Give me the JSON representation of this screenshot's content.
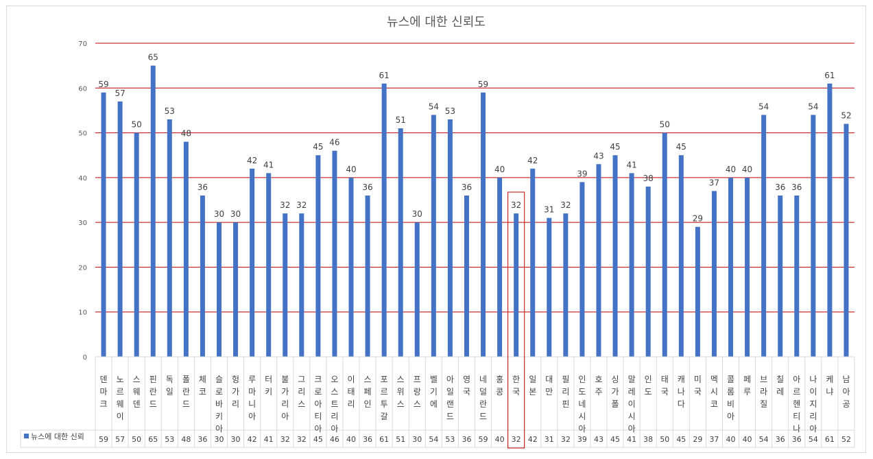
{
  "chart_data": {
    "type": "bar",
    "title": "뉴스에 대한 신뢰도",
    "xlabel": "",
    "ylabel": "",
    "ylim": [
      0,
      70
    ],
    "yticks": [
      0,
      10,
      20,
      30,
      40,
      50,
      60,
      70
    ],
    "grid": true,
    "legend": "bottom-left (data table)",
    "highlighted_category": "한국",
    "categories": [
      "덴마크",
      "노르웨이",
      "스웨덴",
      "핀란드",
      "독일",
      "폴란드",
      "체코",
      "슬로바키아",
      "헝가리",
      "루마니아",
      "터키",
      "불가리아",
      "그리스",
      "크로아티아",
      "오스트리아",
      "이태리",
      "스페인",
      "포르투갈",
      "스위스",
      "프랑스",
      "벨기에",
      "아일랜드",
      "영국",
      "네덜란드",
      "홍콩",
      "한국",
      "일본",
      "대만",
      "필리핀",
      "인도네시아",
      "호주",
      "싱가폴",
      "말레이시아",
      "인도",
      "태국",
      "캐나다",
      "미국",
      "멕시코",
      "콜롬비아",
      "페루",
      "브라질",
      "칠레",
      "아르헨티나",
      "나이지리아",
      "케냐",
      "남아공"
    ],
    "series": [
      {
        "name": "뉴스에 대한 신뢰",
        "color": "#4472c4",
        "values": [
          59,
          57,
          50,
          65,
          53,
          48,
          36,
          30,
          30,
          42,
          41,
          32,
          32,
          45,
          46,
          40,
          36,
          61,
          51,
          30,
          54,
          53,
          36,
          59,
          40,
          32,
          42,
          31,
          32,
          39,
          43,
          45,
          41,
          38,
          50,
          45,
          29,
          37,
          40,
          40,
          54,
          36,
          36,
          54,
          61,
          52
        ]
      }
    ],
    "colors": {
      "bar": "#4472c4",
      "gridline": "#c00000",
      "highlight": "#c00000",
      "table_border": "#d9d9d9"
    }
  }
}
